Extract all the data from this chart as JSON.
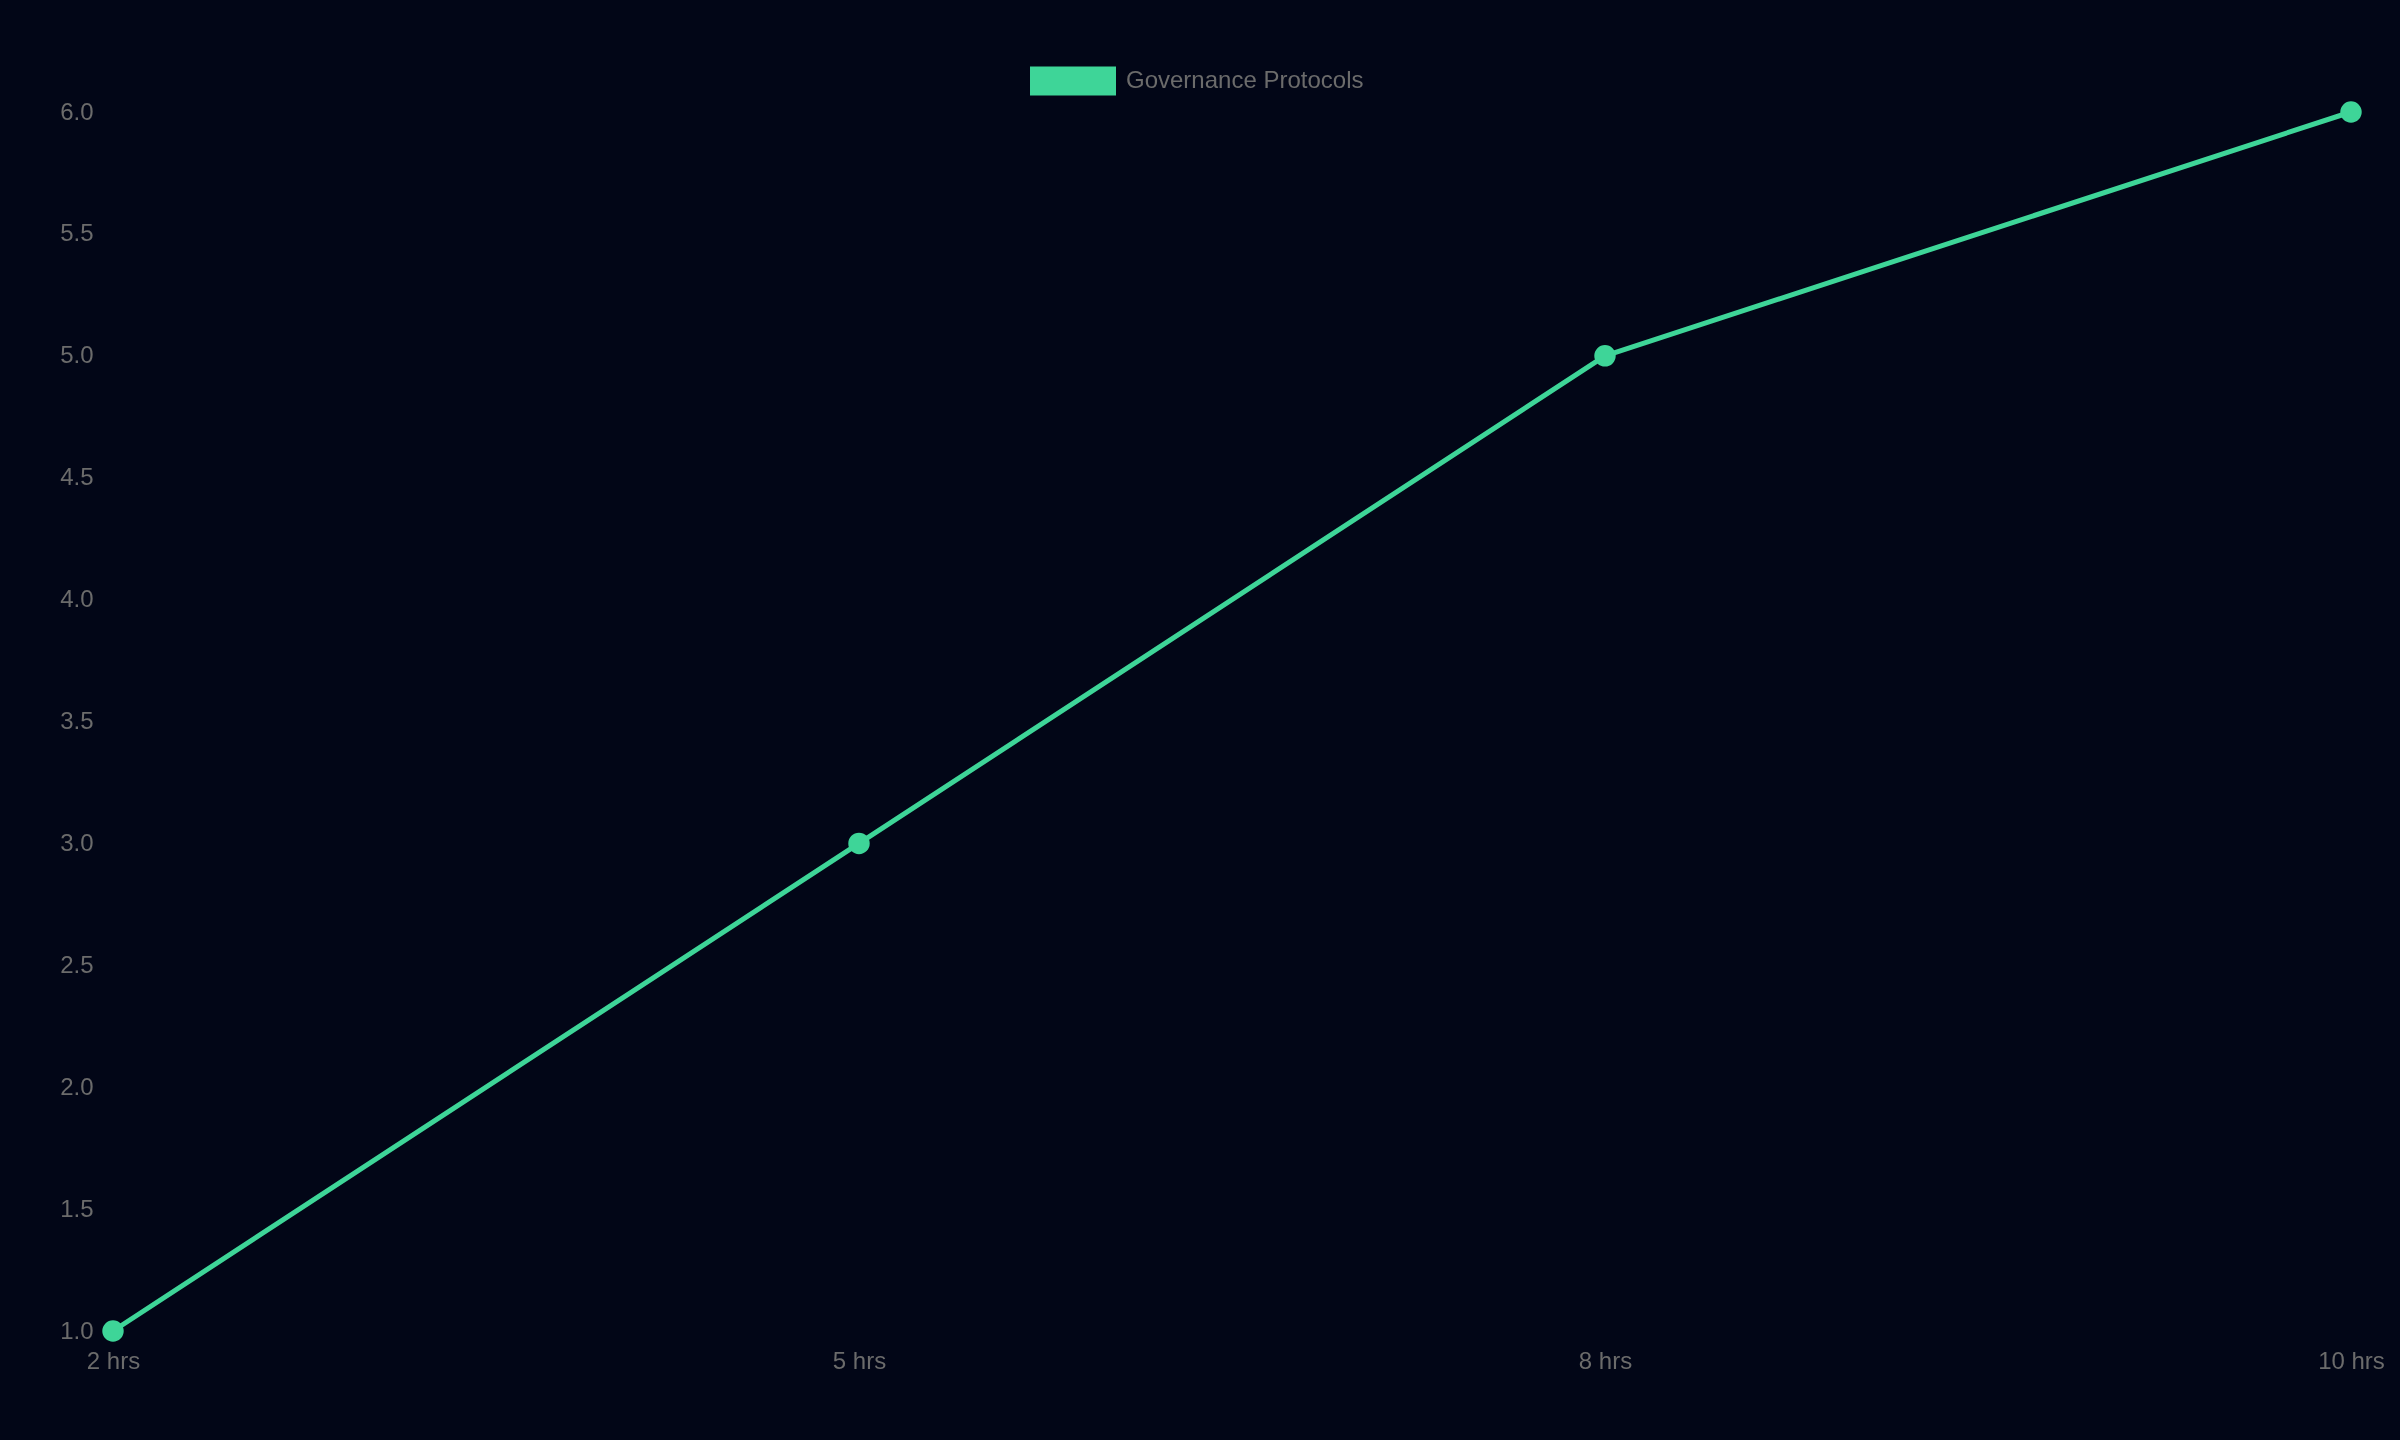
{
  "chart_data": {
    "type": "line",
    "categories": [
      "2 hrs",
      "5 hrs",
      "8 hrs",
      "10 hrs"
    ],
    "series": [
      {
        "name": "Governance Protocols",
        "color": "#3ed598",
        "values": [
          1,
          3,
          5,
          6
        ]
      }
    ],
    "ylim": [
      1,
      6
    ],
    "yticks": [
      {
        "value": 1,
        "label": "1.0"
      },
      1.5,
      {
        "value": 2,
        "label": "2.0"
      },
      2.5,
      {
        "value": 3,
        "label": "3.0"
      },
      3.5,
      {
        "value": 4,
        "label": "4.0"
      },
      4.5,
      {
        "value": 5,
        "label": "5.0"
      },
      5.5,
      {
        "value": 6,
        "label": "6.0"
      }
    ],
    "grid": false,
    "legend": "top",
    "marker": "circle"
  }
}
